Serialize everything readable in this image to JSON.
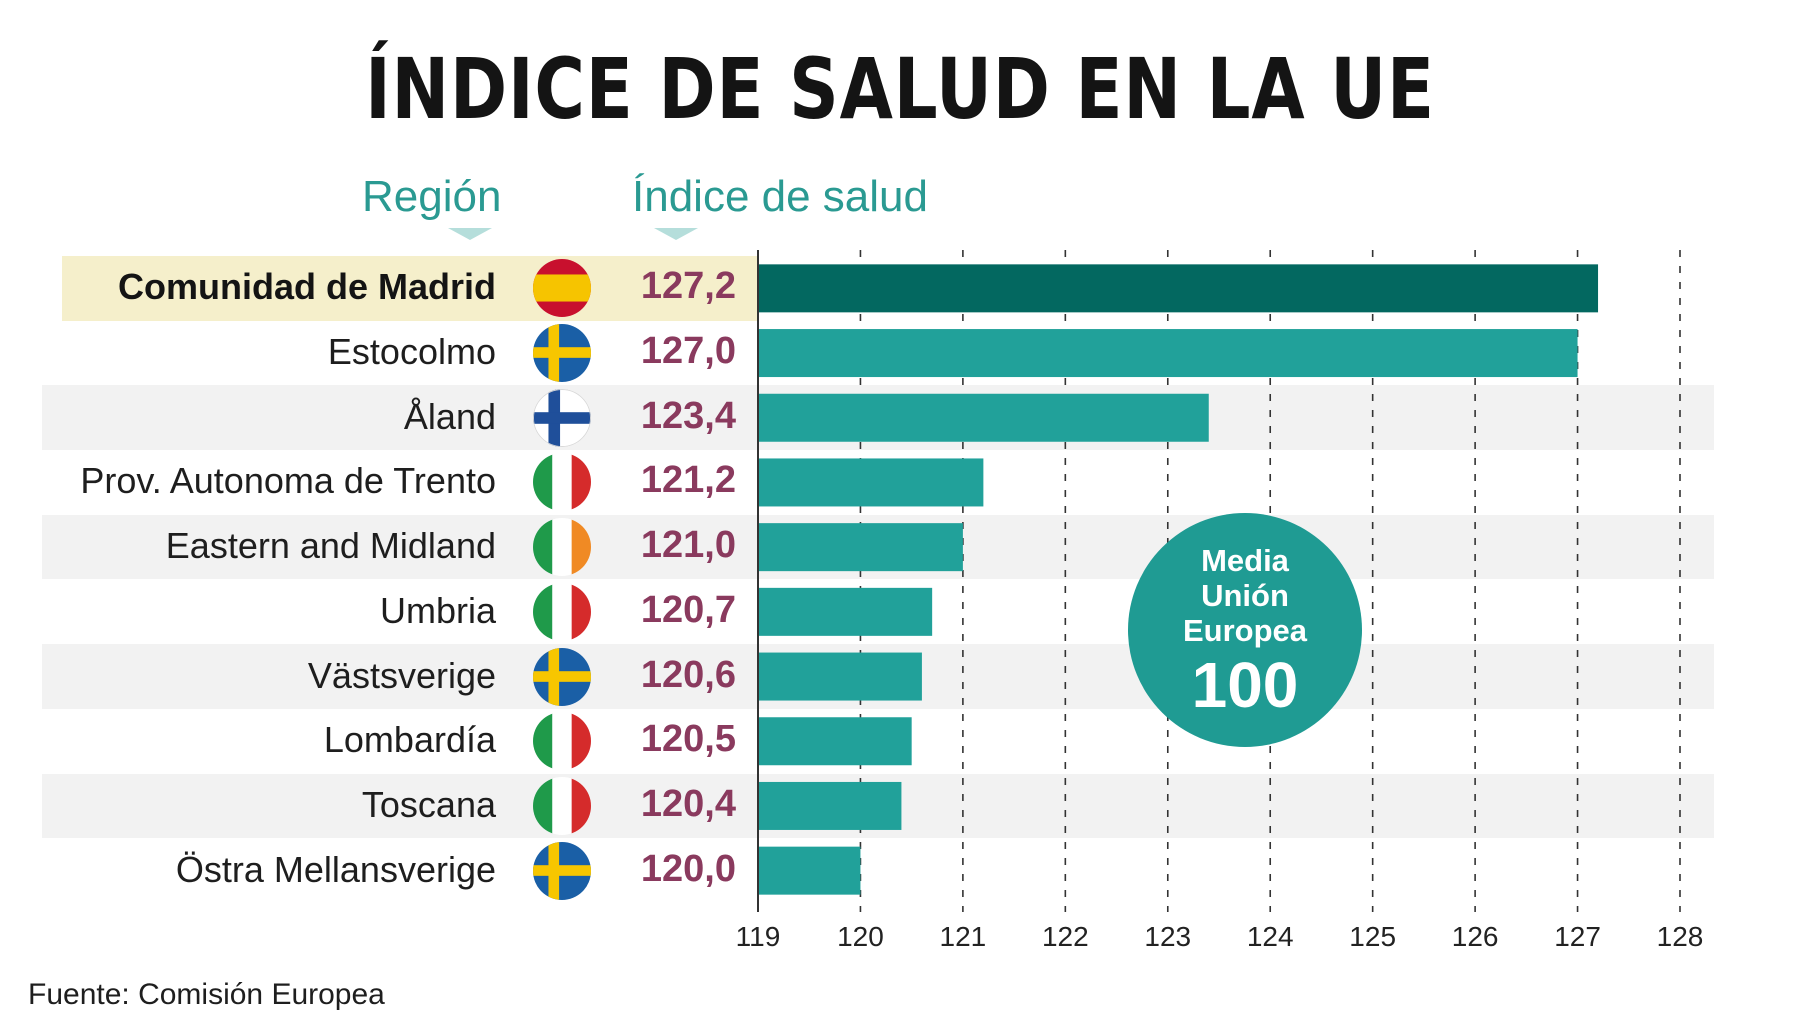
{
  "title": "ÍNDICE DE SALUD EN LA UE",
  "headers": {
    "region": "Región",
    "index": "Índice de salud"
  },
  "badge": {
    "line1": "Media",
    "line2": "Unión",
    "line3": "Europea",
    "value": "100"
  },
  "source": "Fuente: Comisión Europea",
  "colors": {
    "bar": "#21a19a",
    "bar_highlight": "#036860",
    "highlight_band": "#f5efcb",
    "alt_band": "#f2f2f2",
    "value_text": "#8a3a5e",
    "header_text": "#2a9a92"
  },
  "chart_data": {
    "type": "bar",
    "orientation": "horizontal",
    "categories": [
      "Comunidad de Madrid",
      "Estocolmo",
      "Åland",
      "Prov. Autonoma de Trento",
      "Eastern and Midland",
      "Umbria",
      "Västsverige",
      "Lombardía",
      "Toscana",
      "Östra Mellansverige"
    ],
    "values": [
      127.2,
      127.0,
      123.4,
      121.2,
      121.0,
      120.7,
      120.6,
      120.5,
      120.4,
      120.0
    ],
    "value_labels": [
      "127,2",
      "127,0",
      "123,4",
      "121,2",
      "121,0",
      "120,7",
      "120,6",
      "120,5",
      "120,4",
      "120,0"
    ],
    "flags": [
      "spain-flag-icon",
      "sweden-flag-icon",
      "finland-flag-icon",
      "italy-flag-icon",
      "ireland-flag-icon",
      "italy-flag-icon",
      "sweden-flag-icon",
      "italy-flag-icon",
      "italy-flag-icon",
      "sweden-flag-icon"
    ],
    "highlight_index": 0,
    "xticks": [
      "119",
      "120",
      "121",
      "122",
      "123",
      "124",
      "125",
      "126",
      "127",
      "128"
    ],
    "xlim": [
      119,
      128
    ],
    "grid": true,
    "grid_style": "dashed vertical"
  }
}
